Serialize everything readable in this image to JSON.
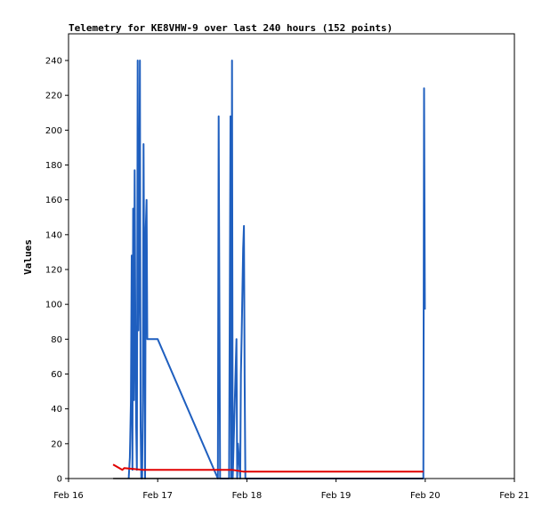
{
  "chart_data": {
    "type": "line",
    "title": "Telemetry for KE8VHW-9 over last 240 hours (152 points)",
    "xlabel": "",
    "ylabel": "Values",
    "x_unit": "hours",
    "x_ticks": [
      "Feb 16",
      "Feb 17",
      "Feb 18",
      "Feb 19",
      "Feb 20",
      "Feb 21"
    ],
    "xlim": [
      0,
      120
    ],
    "ylim": [
      0,
      255
    ],
    "y_ticks": [
      0,
      20,
      40,
      60,
      80,
      100,
      120,
      140,
      160,
      180,
      200,
      220,
      240
    ],
    "grid": false,
    "series": [
      {
        "color": "#1f5fbf",
        "x": [
          16.2,
          16.5,
          16.6,
          16.8,
          17.0,
          17.2,
          17.4,
          17.6,
          17.8,
          18.0,
          18.2,
          18.4,
          18.6,
          18.8,
          19.0,
          19.2,
          19.4,
          19.6,
          19.8,
          20.0,
          20.2,
          20.4,
          20.6,
          20.8,
          21.0,
          21.2,
          21.4,
          21.6,
          21.8,
          22.0,
          22.2,
          22.4,
          22.6,
          22.8,
          23.0,
          23.2,
          23.4,
          23.6,
          23.8,
          24.0,
          40.2,
          40.4,
          40.6,
          40.8,
          43.2,
          43.4,
          43.6,
          43.8,
          44.0,
          44.2,
          45.2,
          45.4,
          45.6,
          46.2,
          46.4,
          46.6,
          46.8,
          47.0,
          47.2,
          47.4,
          47.6,
          95.5,
          95.7,
          95.9
        ],
        "values": [
          0,
          12,
          22,
          45,
          128,
          5,
          155,
          45,
          177,
          88,
          30,
          5,
          240,
          85,
          118,
          240,
          30,
          0,
          0,
          45,
          192,
          97,
          0,
          144,
          160,
          80,
          80,
          80,
          80,
          80,
          80,
          80,
          80,
          80,
          80,
          80,
          80,
          80,
          80,
          80,
          0,
          208,
          104,
          0,
          0,
          104,
          208,
          0,
          240,
          0,
          80,
          0,
          20,
          0,
          60,
          84,
          108,
          132,
          145,
          56,
          0,
          0,
          224,
          97
        ]
      },
      {
        "color": "#e00000",
        "x": [
          12.0,
          14.5,
          15.0,
          20.0,
          30.0,
          40.0,
          44.0,
          47.0,
          60.0,
          80.0,
          95.5
        ],
        "values": [
          8,
          5,
          6,
          5,
          5,
          5,
          5,
          4,
          4,
          4,
          4
        ]
      },
      {
        "color": "#000000",
        "x": [
          12.0,
          95.5
        ],
        "values": [
          0,
          0
        ]
      }
    ]
  }
}
